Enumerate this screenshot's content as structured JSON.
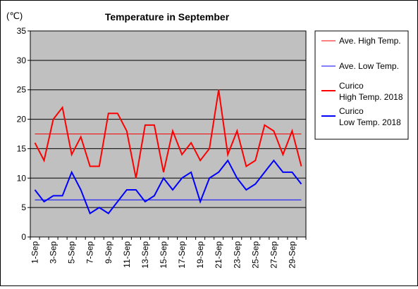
{
  "chart_data": {
    "type": "line",
    "title": "Temperature in September",
    "unit_label": "(℃)",
    "ylim": [
      0,
      35
    ],
    "yticks": [
      0,
      5,
      10,
      15,
      20,
      25,
      30,
      35
    ],
    "x": [
      "1-Sep",
      "2-Sep",
      "3-Sep",
      "4-Sep",
      "5-Sep",
      "6-Sep",
      "7-Sep",
      "8-Sep",
      "9-Sep",
      "10-Sep",
      "11-Sep",
      "12-Sep",
      "13-Sep",
      "14-Sep",
      "15-Sep",
      "16-Sep",
      "17-Sep",
      "18-Sep",
      "19-Sep",
      "20-Sep",
      "21-Sep",
      "22-Sep",
      "23-Sep",
      "24-Sep",
      "25-Sep",
      "26-Sep",
      "27-Sep",
      "28-Sep",
      "29-Sep",
      "30-Sep"
    ],
    "tick_labels": [
      "1-Sep",
      "3-Sep",
      "5-Sep",
      "7-Sep",
      "9-Sep",
      "11-Sep",
      "13-Sep",
      "15-Sep",
      "17-Sep",
      "19-Sep",
      "21-Sep",
      "23-Sep",
      "25-Sep",
      "27-Sep",
      "29-Sep"
    ],
    "grid": true,
    "legend_position": "right",
    "series": [
      {
        "name": "Ave. High Temp.",
        "color": "#ff0000",
        "style": "thin",
        "values": [
          17.5,
          17.5,
          17.5,
          17.5,
          17.5,
          17.5,
          17.5,
          17.5,
          17.5,
          17.5,
          17.5,
          17.5,
          17.5,
          17.5,
          17.5,
          17.5,
          17.5,
          17.5,
          17.5,
          17.5,
          17.5,
          17.5,
          17.5,
          17.5,
          17.5,
          17.5,
          17.5,
          17.5,
          17.5,
          17.5
        ]
      },
      {
        "name": "Ave. Low Temp.",
        "color": "#0000ff",
        "style": "thin",
        "values": [
          6.3,
          6.3,
          6.3,
          6.3,
          6.3,
          6.3,
          6.3,
          6.3,
          6.3,
          6.3,
          6.3,
          6.3,
          6.3,
          6.3,
          6.3,
          6.3,
          6.3,
          6.3,
          6.3,
          6.3,
          6.3,
          6.3,
          6.3,
          6.3,
          6.3,
          6.3,
          6.3,
          6.3,
          6.3,
          6.3
        ]
      },
      {
        "name": "Curico High Temp. 2018",
        "name_lines": [
          "Curico",
          "High Temp. 2018"
        ],
        "color": "#ff0000",
        "style": "thick",
        "values": [
          16,
          13,
          20,
          22,
          14,
          17,
          12,
          12,
          21,
          21,
          18,
          10,
          19,
          19,
          11,
          18,
          14,
          16,
          13,
          15,
          25,
          14,
          18,
          12,
          13,
          19,
          18,
          14,
          18,
          12
        ]
      },
      {
        "name": "Curico Low Temp. 2018",
        "name_lines": [
          "Curico",
          "Low Temp. 2018"
        ],
        "color": "#0000ff",
        "style": "thick",
        "values": [
          8,
          6,
          7,
          7,
          11,
          8,
          4,
          5,
          4,
          6,
          8,
          8,
          6,
          7,
          10,
          8,
          10,
          11,
          6,
          10,
          11,
          13,
          10,
          8,
          9,
          11,
          13,
          11,
          11,
          9
        ]
      }
    ]
  }
}
